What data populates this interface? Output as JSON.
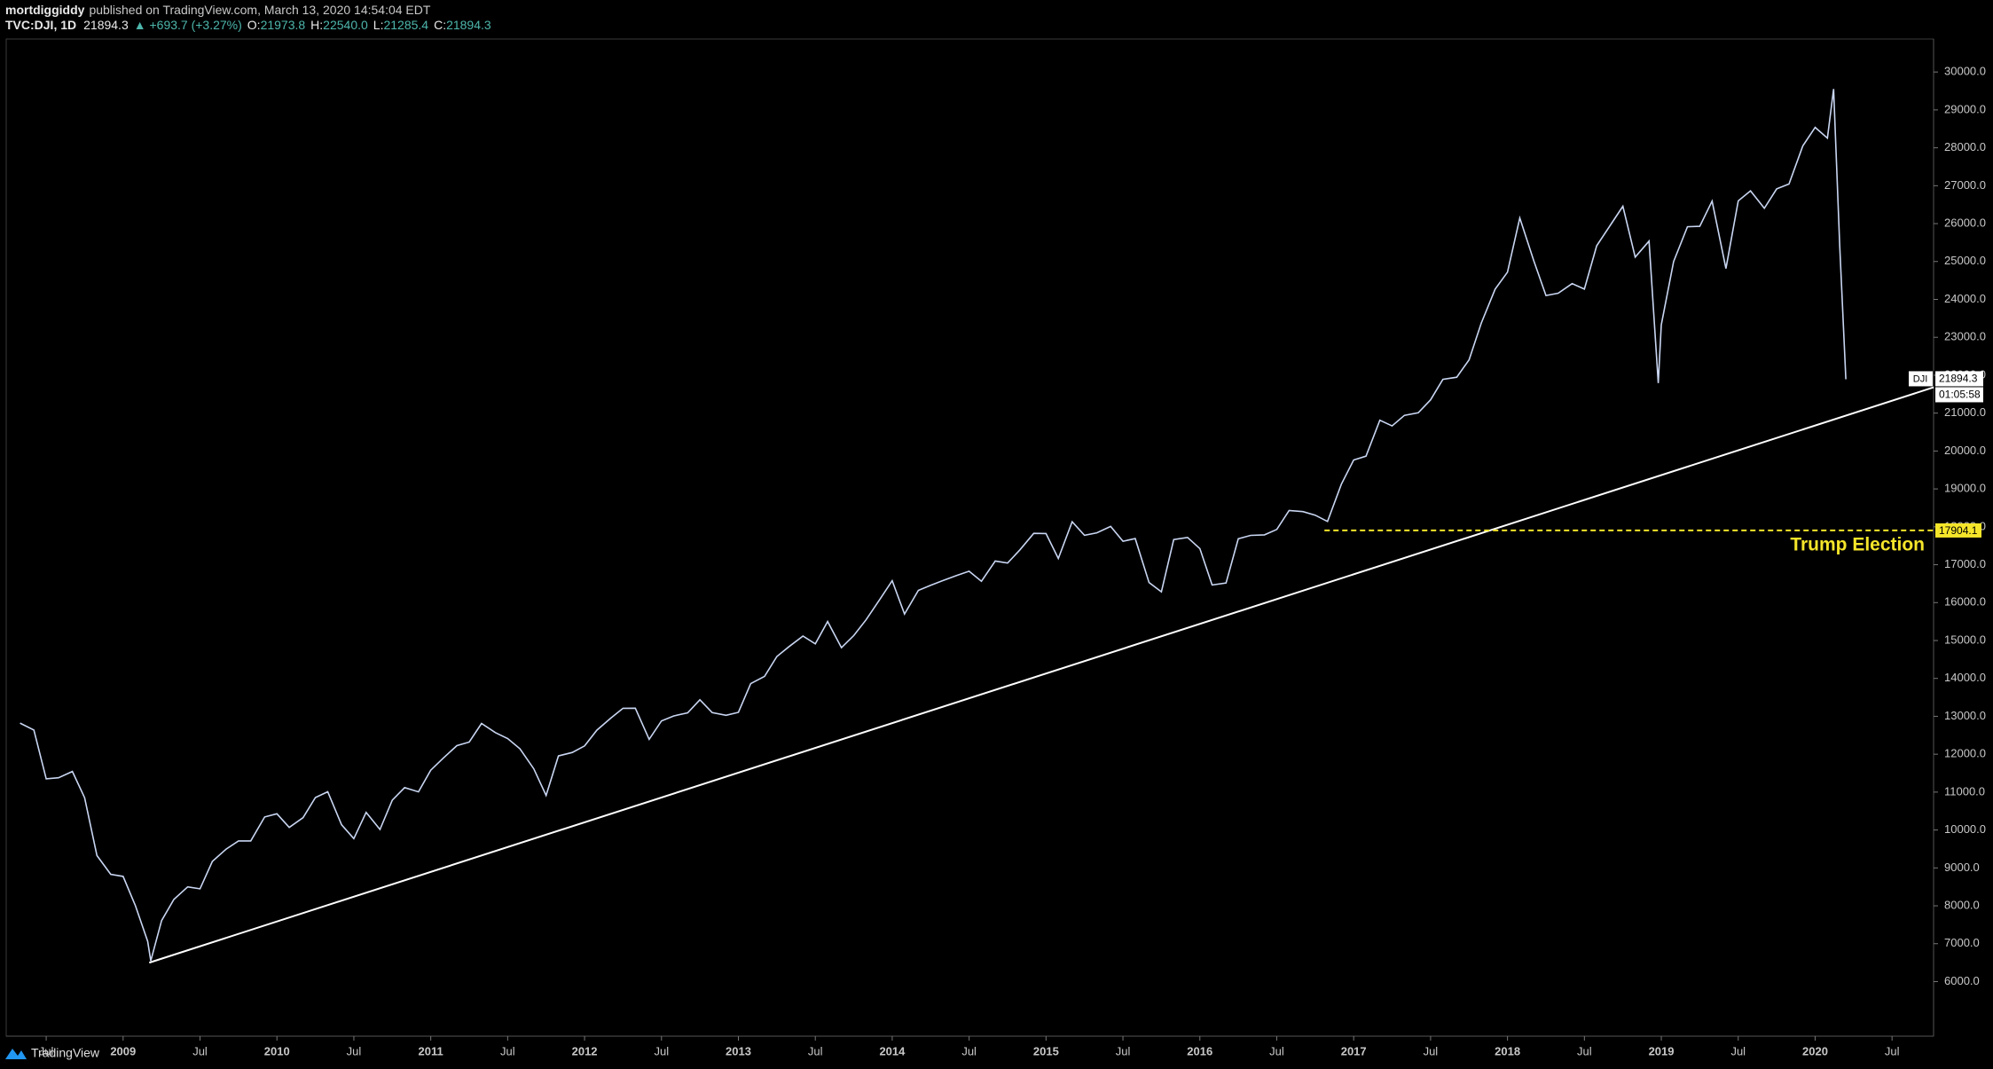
{
  "header": {
    "author": "mortdiggiddy",
    "published": "published on TradingView.com, March 13, 2020 14:54:04 EDT",
    "symbol": "TVC:DJI, 1D",
    "last": "21894.3",
    "change": "▲ +693.7 (+3.27%)",
    "o_label": "O:",
    "o": "21973.8",
    "h_label": "H:",
    "h": "22540.0",
    "l_label": "L:",
    "l": "21285.4",
    "c_label": "C:",
    "c": "21894.3"
  },
  "footer": {
    "brand": "TradingView"
  },
  "chart_data": {
    "type": "line",
    "color": "#c9d6f2",
    "x": [
      2008.33,
      2008.42,
      2008.5,
      2008.58,
      2008.67,
      2008.75,
      2008.83,
      2008.92,
      2009.0,
      2009.08,
      2009.16,
      2009.18,
      2009.25,
      2009.33,
      2009.42,
      2009.5,
      2009.58,
      2009.67,
      2009.75,
      2009.83,
      2009.92,
      2010.0,
      2010.08,
      2010.17,
      2010.25,
      2010.33,
      2010.42,
      2010.5,
      2010.58,
      2010.67,
      2010.75,
      2010.83,
      2010.92,
      2011.0,
      2011.08,
      2011.17,
      2011.25,
      2011.33,
      2011.42,
      2011.5,
      2011.58,
      2011.67,
      2011.75,
      2011.83,
      2011.92,
      2012.0,
      2012.08,
      2012.17,
      2012.25,
      2012.33,
      2012.42,
      2012.5,
      2012.58,
      2012.67,
      2012.75,
      2012.83,
      2012.92,
      2013.0,
      2013.08,
      2013.17,
      2013.25,
      2013.33,
      2013.42,
      2013.5,
      2013.58,
      2013.67,
      2013.75,
      2013.83,
      2013.92,
      2014.0,
      2014.08,
      2014.17,
      2014.25,
      2014.33,
      2014.42,
      2014.5,
      2014.58,
      2014.67,
      2014.75,
      2014.83,
      2014.92,
      2015.0,
      2015.08,
      2015.17,
      2015.25,
      2015.33,
      2015.42,
      2015.5,
      2015.58,
      2015.67,
      2015.75,
      2015.83,
      2015.92,
      2016.0,
      2016.08,
      2016.17,
      2016.25,
      2016.33,
      2016.42,
      2016.5,
      2016.58,
      2016.67,
      2016.75,
      2016.83,
      2016.92,
      2017.0,
      2017.08,
      2017.17,
      2017.25,
      2017.33,
      2017.42,
      2017.5,
      2017.58,
      2017.67,
      2017.75,
      2017.83,
      2017.92,
      2018.0,
      2018.08,
      2018.17,
      2018.25,
      2018.33,
      2018.42,
      2018.5,
      2018.58,
      2018.67,
      2018.75,
      2018.83,
      2018.92,
      2018.98,
      2019.0,
      2019.08,
      2019.17,
      2019.25,
      2019.33,
      2019.42,
      2019.5,
      2019.58,
      2019.67,
      2019.75,
      2019.83,
      2019.92,
      2020.0,
      2020.08,
      2020.12,
      2020.16,
      2020.2
    ],
    "values": [
      12820,
      12638,
      11350,
      11378,
      11544,
      10851,
      9325,
      8829,
      8776,
      8001,
      7063,
      6547,
      7609,
      8168,
      8500,
      8447,
      9172,
      9496,
      9712,
      9713,
      10344,
      10428,
      10067,
      10325,
      10857,
      11009,
      10137,
      9774,
      10466,
      10015,
      10788,
      11118,
      11006,
      11578,
      11892,
      12226,
      12320,
      12811,
      12570,
      12414,
      12143,
      11614,
      10913,
      11955,
      12046,
      12218,
      12633,
      12952,
      13212,
      13214,
      12393,
      12880,
      13009,
      13091,
      13437,
      13096,
      13026,
      13104,
      13861,
      14054,
      14579,
      14840,
      15116,
      14910,
      15500,
      14810,
      15130,
      15546,
      16086,
      16577,
      15699,
      16322,
      16458,
      16581,
      16717,
      16827,
      16563,
      17098,
      17043,
      17391,
      17828,
      17823,
      17165,
      18133,
      17776,
      17841,
      18011,
      17620,
      17690,
      16528,
      16285,
      17664,
      17720,
      17425,
      16466,
      16517,
      17685,
      17774,
      17787,
      17930,
      18432,
      18401,
      18308,
      18142,
      19124,
      19763,
      19864,
      20812,
      20663,
      20941,
      21009,
      21350,
      21891,
      21948,
      22405,
      23377,
      24272,
      24719,
      26149,
      25029,
      24103,
      24163,
      24416,
      24271,
      25415,
      25965,
      26458,
      25116,
      25538,
      21792,
      23327,
      24999,
      25916,
      25929,
      26593,
      24815,
      26600,
      26864,
      26403,
      26917,
      27046,
      28051,
      28538,
      28256,
      29551,
      25409,
      21894.3
    ],
    "xlim": [
      2008.24,
      2020.77
    ],
    "ylim": [
      4560,
      30870
    ],
    "xticks": [
      {
        "value": 2008.5,
        "label": "Jul"
      },
      2009,
      {
        "value": 2009.5,
        "label": "Jul"
      },
      2010,
      {
        "value": 2010.5,
        "label": "Jul"
      },
      2011,
      {
        "value": 2011.5,
        "label": "Jul"
      },
      2012,
      {
        "value": 2012.5,
        "label": "Jul"
      },
      2013,
      {
        "value": 2013.5,
        "label": "Jul"
      },
      2014,
      {
        "value": 2014.5,
        "label": "Jul"
      },
      2015,
      {
        "value": 2015.5,
        "label": "Jul"
      },
      2016,
      {
        "value": 2016.5,
        "label": "Jul"
      },
      2017,
      {
        "value": 2017.5,
        "label": "Jul"
      },
      2018,
      {
        "value": 2018.5,
        "label": "Jul"
      },
      2019,
      {
        "value": 2019.5,
        "label": "Jul"
      },
      2020,
      {
        "value": 2020.5,
        "label": "Jul"
      }
    ],
    "yticks": [
      {
        "value": 6000,
        "label": "6000.0"
      },
      {
        "value": 7000,
        "label": "7000.0"
      },
      {
        "value": 8000,
        "label": "8000.0"
      },
      {
        "value": 9000,
        "label": "9000.0"
      },
      {
        "value": 10000,
        "label": "10000.0"
      },
      {
        "value": 11000,
        "label": "11000.0"
      },
      {
        "value": 12000,
        "label": "12000.0"
      },
      {
        "value": 13000,
        "label": "13000.0"
      },
      {
        "value": 14000,
        "label": "14000.0"
      },
      {
        "value": 15000,
        "label": "15000.0"
      },
      {
        "value": 16000,
        "label": "16000.0"
      },
      {
        "value": 17000,
        "label": "17000.0"
      },
      {
        "value": 18000,
        "label": "18000.0"
      },
      {
        "value": 19000,
        "label": "19000.0"
      },
      {
        "value": 20000,
        "label": "20000.0"
      },
      {
        "value": 21000,
        "label": "21000.0"
      },
      {
        "value": 22000,
        "label": "22000.0"
      },
      {
        "value": 23000,
        "label": "23000.0"
      },
      {
        "value": 24000,
        "label": "24000.0"
      },
      {
        "value": 25000,
        "label": "25000.0"
      },
      {
        "value": 26000,
        "label": "26000.0"
      },
      {
        "value": 27000,
        "label": "27000.0"
      },
      {
        "value": 28000,
        "label": "28000.0"
      },
      {
        "value": 29000,
        "label": "29000.0"
      },
      {
        "value": 30000,
        "label": "30000.0"
      }
    ],
    "trendline": {
      "x": [
        2009.17,
        2020.77
      ],
      "y": [
        6500,
        21680
      ],
      "color": "#ffffff"
    },
    "hline": {
      "x_start": 2016.81,
      "value": 17904.1,
      "color": "#f5e52a",
      "annotation": "Trump Election"
    },
    "price_tag": {
      "symbol": "DJI",
      "countdown": "01:05:58"
    }
  }
}
